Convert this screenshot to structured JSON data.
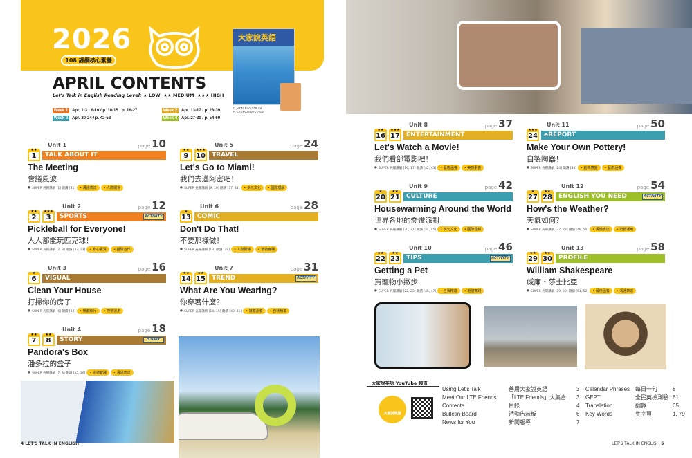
{
  "header": {
    "year": "2026",
    "badge": "108 課綱核心素養",
    "title": "APRIL CONTENTS",
    "reading_level_label": "Let's Talk in English Reading Level:",
    "levels": [
      "★ LOW",
      "★★ MEDIUM",
      "★★★ HIGH"
    ],
    "weeks": [
      {
        "label": "Week 1",
        "dates": "Apr. 1-3 ; 6-10 / p. 10-15 ; p. 16-27",
        "color": "#e8742a"
      },
      {
        "label": "Week 2",
        "dates": "Apr. 13-17 / p. 28-39",
        "color": "#e0a92a"
      },
      {
        "label": "Week 3",
        "dates": "Apr. 20-24 / p. 42-52",
        "color": "#3b9fb0"
      },
      {
        "label": "Week 4",
        "dates": "Apr. 27-30 / p. 54-60",
        "color": "#9cbf2a"
      }
    ],
    "cover_title": "大家說英語",
    "credits": [
      "© Jeff Chao / OKTV",
      "© Shutterstock.com"
    ]
  },
  "units": [
    {
      "unit": "Unit 1",
      "page": "10",
      "nums": [
        "1"
      ],
      "stars": [
        "★★"
      ],
      "category": "TALK ABOUT IT",
      "color": "#f08020",
      "title": "The Meeting",
      "zh": "會議風波",
      "info": "SUPER 光碟講解 [1]  朗讀 [31]",
      "tags": [
        "溝通表達",
        "人際關係"
      ]
    },
    {
      "unit": "Unit 2",
      "page": "12",
      "nums": [
        "2",
        "3"
      ],
      "stars": [
        "★★",
        "★★★"
      ],
      "category": "SPORTS",
      "color": "#f08020",
      "activity": "ACTIVITY",
      "title": "Pickleball for Everyone!",
      "zh": "人人都能玩匹克球！",
      "info": "SUPER 光碟講解 [2, 3]  朗讀 [32, 33]",
      "tags": [
        "身心素質",
        "團隊合作"
      ]
    },
    {
      "unit": "Unit 3",
      "page": "16",
      "nums": [
        "6"
      ],
      "stars": [
        "★"
      ],
      "category": "VISUAL",
      "color": "#a87a34",
      "title": "Clean Your House",
      "zh": "打掃你的房子",
      "info": "SUPER 光碟講解 [6]  朗讀 [34]",
      "tags": [
        "規劃執行",
        "符號運用"
      ]
    },
    {
      "unit": "Unit 4",
      "page": "18",
      "nums": [
        "7",
        "8"
      ],
      "stars": [
        "★★",
        "★★"
      ],
      "category": "STORY",
      "color": "#a87a34",
      "activity": "STORY",
      "title": "Pandora's Box",
      "zh": "潘多拉的盒子",
      "info": "SUPER 光碟講解 [7, 8]  朗讀 [35, 36]",
      "tags": [
        "道德實踐",
        "溝通表達"
      ]
    },
    {
      "unit": "Unit 5",
      "page": "24",
      "nums": [
        "9",
        "10"
      ],
      "stars": [
        "★★",
        "★★★"
      ],
      "category": "TRAVEL",
      "color": "#a87a34",
      "title": "Let's Go to Miami!",
      "zh": "我們去邁阿密吧！",
      "info": "SUPER 光碟講解 [9, 10]  朗讀 [37, 38]",
      "tags": [
        "多元文化",
        "國際理解"
      ]
    },
    {
      "unit": "Unit 6",
      "page": "28",
      "nums": [
        "13"
      ],
      "stars": [
        "★"
      ],
      "category": "COMIC",
      "color": "#e3b024",
      "title": "Don't Do That!",
      "zh": "不要那樣做！",
      "info": "SUPER 光碟講解 [13]  朗讀 [39]",
      "tags": [
        "人際關係",
        "道德實踐"
      ]
    },
    {
      "unit": "Unit 7",
      "page": "31",
      "nums": [
        "14",
        "15"
      ],
      "stars": [
        "★★",
        "★★"
      ],
      "category": "TREND",
      "color": "#e3b024",
      "activity": "ACTIVITY",
      "title": "What Are You Wearing?",
      "zh": "你穿著什麼？",
      "info": "SUPER 光碟講解 [14, 15]  朗讀 [40, 41]",
      "tags": [
        "媒體素養",
        "自我精進"
      ]
    },
    {
      "unit": "Unit 8",
      "page": "37",
      "nums": [
        "16",
        "17"
      ],
      "stars": [
        "★★",
        "★★★"
      ],
      "category": "ENTERTAINMENT",
      "color": "#e3b024",
      "title": "Let's Watch a Movie!",
      "zh": "我們看部電影吧！",
      "info": "SUPER 光碟講解 [16, 17]  朗讀 [42, 43]",
      "tags": [
        "藝術涵養",
        "美感素養"
      ]
    },
    {
      "unit": "Unit 9",
      "page": "42",
      "nums": [
        "20",
        "21"
      ],
      "stars": [
        "★",
        "★★"
      ],
      "category": "CULTURE",
      "color": "#3b9fb0",
      "title": "Housewarming Around the World",
      "zh": "世界各地的喬遷派對",
      "info": "SUPER 光碟講解 [20, 21]  朗讀 [44, 45]",
      "tags": [
        "多元文化",
        "國際理解"
      ]
    },
    {
      "unit": "Unit 10",
      "page": "46",
      "nums": [
        "22",
        "23"
      ],
      "stars": [
        "★★",
        "★★"
      ],
      "category": "TIPS",
      "color": "#3b9fb0",
      "activity": "ACTIVITY",
      "title": "Getting a Pet",
      "zh": "買寵物小撇步",
      "info": "SUPER 光碟講解 [22, 23]  朗讀 [46, 47]",
      "tags": [
        "自我精進",
        "道德實踐"
      ]
    },
    {
      "unit": "Unit 11",
      "page": "50",
      "nums": [
        "24"
      ],
      "stars": [
        "★★★"
      ],
      "category": "eREPORT",
      "color": "#3b9fb0",
      "title": "Make Your Own Pottery!",
      "zh": "自製陶器！",
      "info": "SUPER 光碟講解 [24]  朗讀 [48]",
      "tags": [
        "創新應變",
        "藝術涵養"
      ]
    },
    {
      "unit": "Unit 12",
      "page": "54",
      "nums": [
        "27",
        "28"
      ],
      "stars": [
        "★",
        "★★"
      ],
      "category": "ENGLISH YOU NEED",
      "color": "#9cbf2a",
      "activity": "ACTIVITY",
      "title": "How's the Weather?",
      "zh": "天氣如何？",
      "info": "SUPER 光碟講解 [27, 28]  朗讀 [49, 50]",
      "tags": [
        "溝通表達",
        "符號運用"
      ]
    },
    {
      "unit": "Unit 13",
      "page": "58",
      "nums": [
        "29",
        "30"
      ],
      "stars": [
        "★★",
        "★★"
      ],
      "category": "PROFILE",
      "color": "#9cbf2a",
      "title": "William Shakespeare",
      "zh": "威廉・莎士比亞",
      "info": "SUPER 光碟講解 [29, 30]  朗讀 [51, 52]",
      "tags": [
        "藝術涵養",
        "溝通表達"
      ]
    }
  ],
  "page_word": "page",
  "youtube_label": "大家說英語 YouTube 頻道",
  "logo_text": "大家說英語",
  "index": [
    {
      "en": "Using Let's Talk",
      "zh": "善用大家說英語",
      "p": "3"
    },
    {
      "en": "Meet Our LTE Friends",
      "zh": "「LTE Friends」大集合",
      "p": "3"
    },
    {
      "en": "Contents",
      "zh": "目錄",
      "p": "4"
    },
    {
      "en": "Bulletin Board",
      "zh": "活動告示板",
      "p": "6"
    },
    {
      "en": "News for You",
      "zh": "新聞報導",
      "p": "7"
    },
    {
      "en": "Calendar Phrases",
      "zh": "每日一句",
      "p": "8"
    },
    {
      "en": "GEPT",
      "zh": "全民英檢測驗",
      "p": "61"
    },
    {
      "en": "Translation",
      "zh": "翻譯",
      "p": "65"
    },
    {
      "en": "Key Words",
      "zh": "生字頁",
      "p": "1, 79"
    }
  ],
  "footer": {
    "left_num": "4",
    "left_text": "LET'S TALK IN ENGLISH",
    "right_text": "LET'S TALK IN ENGLISH",
    "right_num": "5"
  }
}
